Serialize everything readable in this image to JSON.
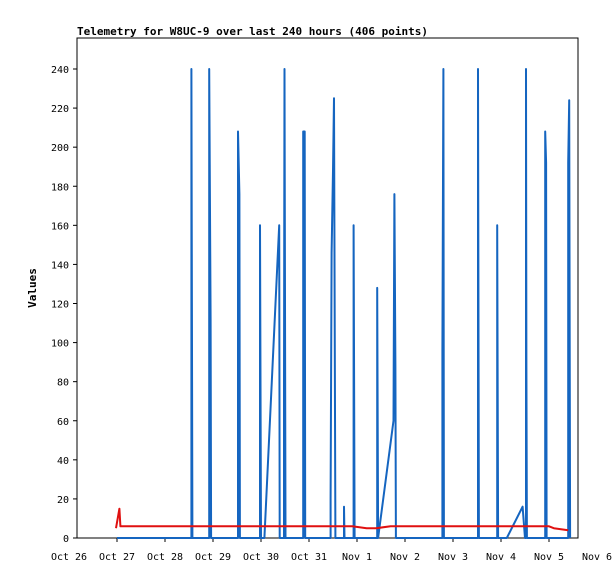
{
  "chart_data": {
    "type": "line",
    "title": "Telemetry for W8UC-9 over last 240 hours (406 points)",
    "xlabel": "",
    "ylabel": "Values",
    "xlim": [
      0,
      11
    ],
    "ylim": [
      0,
      255
    ],
    "x_ticks": [
      {
        "value": 0,
        "label": "Oct 26"
      },
      {
        "value": 1,
        "label": "Oct 27"
      },
      {
        "value": 2,
        "label": "Oct 28"
      },
      {
        "value": 3,
        "label": "Oct 29"
      },
      {
        "value": 4,
        "label": "Oct 30"
      },
      {
        "value": 5,
        "label": "Oct 31"
      },
      {
        "value": 6,
        "label": "Nov 1"
      },
      {
        "value": 7,
        "label": "Nov 2"
      },
      {
        "value": 8,
        "label": "Nov 3"
      },
      {
        "value": 9,
        "label": "Nov 4"
      },
      {
        "value": 10,
        "label": "Nov 5"
      },
      {
        "value": 11,
        "label": "Nov 6"
      }
    ],
    "y_ticks": [
      0,
      20,
      40,
      60,
      80,
      100,
      120,
      140,
      160,
      180,
      200,
      220,
      240
    ],
    "grid": false,
    "series": [
      {
        "color": "#1565c0",
        "points": [
          [
            1.0,
            0
          ],
          [
            2.55,
            0
          ],
          [
            2.55,
            240
          ],
          [
            2.56,
            120
          ],
          [
            2.57,
            0
          ],
          [
            2.92,
            0
          ],
          [
            2.92,
            240
          ],
          [
            2.95,
            112
          ],
          [
            2.96,
            0
          ],
          [
            3.52,
            0
          ],
          [
            3.52,
            208
          ],
          [
            3.55,
            176
          ],
          [
            3.56,
            0
          ],
          [
            3.98,
            0
          ],
          [
            3.98,
            160
          ],
          [
            4.0,
            0
          ],
          [
            4.07,
            0
          ],
          [
            4.38,
            160
          ],
          [
            4.39,
            0
          ],
          [
            4.48,
            0
          ],
          [
            4.48,
            80
          ],
          [
            4.49,
            240
          ],
          [
            4.51,
            0
          ],
          [
            4.88,
            0
          ],
          [
            4.88,
            208
          ],
          [
            4.91,
            208
          ],
          [
            4.92,
            0
          ],
          [
            5.45,
            0
          ],
          [
            5.45,
            20
          ],
          [
            5.47,
            146
          ],
          [
            5.5,
            188
          ],
          [
            5.52,
            225
          ],
          [
            5.53,
            160
          ],
          [
            5.55,
            0
          ],
          [
            5.73,
            0
          ],
          [
            5.73,
            16
          ],
          [
            5.74,
            0
          ],
          [
            5.93,
            0
          ],
          [
            5.93,
            160
          ],
          [
            5.95,
            0
          ],
          [
            6.42,
            0
          ],
          [
            6.42,
            128
          ],
          [
            6.44,
            0
          ],
          [
            6.76,
            60
          ],
          [
            6.78,
            176
          ],
          [
            6.8,
            88
          ],
          [
            6.81,
            0
          ],
          [
            7.78,
            0
          ],
          [
            7.78,
            96
          ],
          [
            7.8,
            240
          ],
          [
            7.81,
            0
          ],
          [
            8.52,
            0
          ],
          [
            8.52,
            240
          ],
          [
            8.54,
            0
          ],
          [
            8.92,
            0
          ],
          [
            8.92,
            160
          ],
          [
            8.94,
            0
          ],
          [
            9.12,
            0
          ],
          [
            9.45,
            16
          ],
          [
            9.5,
            0
          ],
          [
            9.52,
            0
          ],
          [
            9.52,
            240
          ],
          [
            9.53,
            88
          ],
          [
            9.54,
            0
          ],
          [
            9.92,
            0
          ],
          [
            9.92,
            208
          ],
          [
            9.94,
            192
          ],
          [
            9.95,
            0
          ],
          [
            10.4,
            0
          ],
          [
            10.4,
            192
          ],
          [
            10.42,
            224
          ],
          [
            10.44,
            0
          ]
        ]
      },
      {
        "color": "#e01010",
        "points": [
          [
            0.98,
            5
          ],
          [
            1.05,
            15
          ],
          [
            1.07,
            6
          ],
          [
            2.0,
            6
          ],
          [
            3.0,
            6
          ],
          [
            4.0,
            6
          ],
          [
            5.0,
            6
          ],
          [
            5.9,
            6
          ],
          [
            6.2,
            5
          ],
          [
            6.4,
            5
          ],
          [
            6.7,
            6
          ],
          [
            7.0,
            6
          ],
          [
            8.0,
            6
          ],
          [
            9.0,
            6
          ],
          [
            9.5,
            6
          ],
          [
            10.0,
            6
          ],
          [
            10.1,
            5
          ],
          [
            10.4,
            4
          ]
        ]
      }
    ]
  }
}
